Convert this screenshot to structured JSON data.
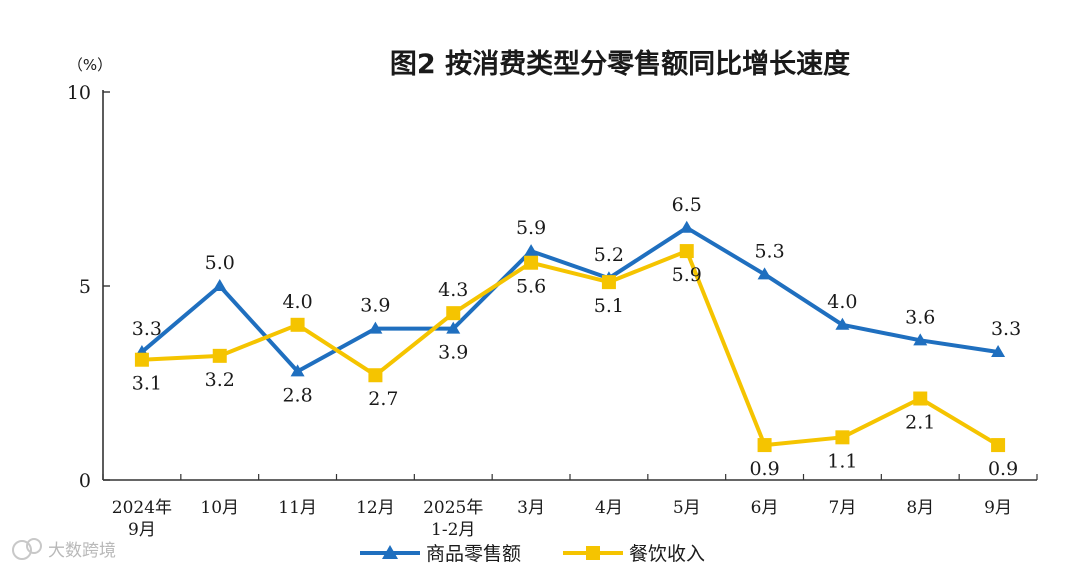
{
  "chart_data": {
    "type": "line",
    "title": "图2  按消费类型分零售额同比增长速度",
    "unit": "（%）",
    "ylim": [
      0,
      10
    ],
    "yticks": [
      "0",
      "5",
      "10"
    ],
    "categories": [
      [
        "2024年",
        "9月"
      ],
      [
        "10月"
      ],
      [
        "11月"
      ],
      [
        "12月"
      ],
      [
        "2025年",
        "1-2月"
      ],
      [
        "3月"
      ],
      [
        "4月"
      ],
      [
        "5月"
      ],
      [
        "6月"
      ],
      [
        "7月"
      ],
      [
        "8月"
      ],
      [
        "9月"
      ]
    ],
    "series": [
      {
        "name": "商品零售额",
        "color": "#1f6fbf",
        "marker": "triangle",
        "values": [
          3.3,
          5.0,
          2.8,
          3.9,
          3.9,
          5.9,
          5.2,
          6.5,
          5.3,
          4.0,
          3.6,
          3.3
        ],
        "labels": [
          "3.3",
          "5.0",
          "2.8",
          "3.9",
          "3.9",
          "5.9",
          "5.2",
          "6.5",
          "5.3",
          "4.0",
          "3.6",
          "3.3"
        ]
      },
      {
        "name": "餐饮收入",
        "color": "#f5c400",
        "marker": "square",
        "values": [
          3.1,
          3.2,
          4.0,
          2.7,
          4.3,
          5.6,
          5.1,
          5.9,
          0.9,
          1.1,
          2.1,
          0.9
        ],
        "labels": [
          "3.1",
          "3.2",
          "4.0",
          "2.7",
          "4.3",
          "5.6",
          "5.1",
          "5.9",
          "0.9",
          "1.1",
          "2.1",
          "0.9"
        ]
      }
    ],
    "grid": false,
    "legend_position": "bottom-center"
  },
  "watermark": "大数跨境"
}
